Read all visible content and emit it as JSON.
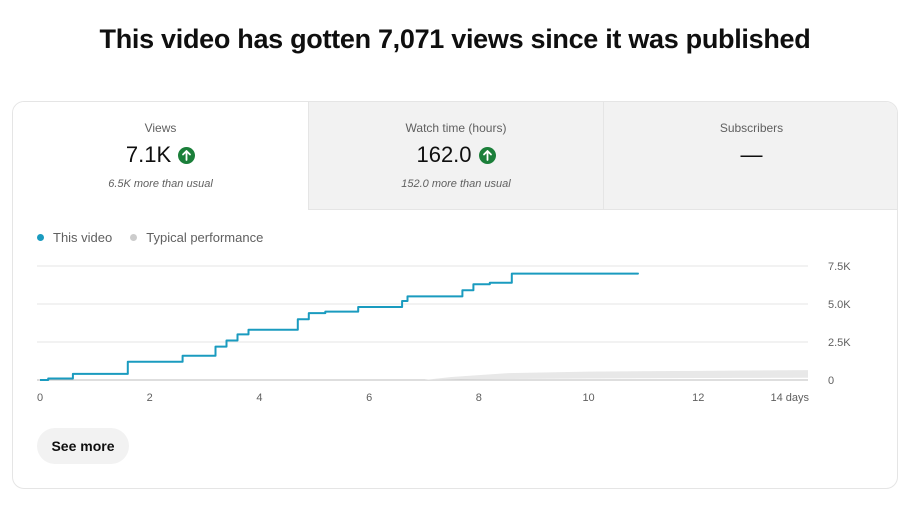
{
  "headline": "This video has gotten 7,071 views since it was published",
  "metrics": [
    {
      "label": "Views",
      "value": "7.1K",
      "sub": "6.5K more than usual",
      "trend": "up"
    },
    {
      "label": "Watch time (hours)",
      "value": "162.0",
      "sub": "152.0 more than usual",
      "trend": "up"
    },
    {
      "label": "Subscribers",
      "value": "—",
      "sub": "",
      "trend": "none"
    }
  ],
  "legend": {
    "this_video": "This video",
    "typical": "Typical performance"
  },
  "colors": {
    "this_video": "#1a9bbf",
    "typical": "#cccccc",
    "trend_up": "#1b7f3a"
  },
  "see_more": "See more",
  "chart_data": {
    "type": "line",
    "title": "",
    "xlabel": "",
    "ylabel": "",
    "x_ticks": [
      "0",
      "2",
      "4",
      "6",
      "8",
      "10",
      "12",
      "14 days"
    ],
    "y_ticks": [
      "0",
      "2.5K",
      "5.0K",
      "7.5K"
    ],
    "xlim": [
      0,
      14
    ],
    "ylim": [
      0,
      7500
    ],
    "series": [
      {
        "name": "This video",
        "style": "step-line",
        "points": [
          [
            0,
            0
          ],
          [
            0.15,
            100
          ],
          [
            0.6,
            400
          ],
          [
            1.6,
            1200
          ],
          [
            2.6,
            1600
          ],
          [
            3.2,
            2200
          ],
          [
            3.4,
            2600
          ],
          [
            3.6,
            3000
          ],
          [
            3.8,
            3300
          ],
          [
            4.7,
            4000
          ],
          [
            4.9,
            4400
          ],
          [
            5.2,
            4500
          ],
          [
            5.8,
            4800
          ],
          [
            6.6,
            5200
          ],
          [
            6.7,
            5500
          ],
          [
            7.7,
            5900
          ],
          [
            7.9,
            6300
          ],
          [
            8.2,
            6400
          ],
          [
            8.6,
            7000
          ],
          [
            10.9,
            7050
          ]
        ]
      },
      {
        "name": "Typical performance",
        "style": "band",
        "upper": [
          [
            0,
            0
          ],
          [
            7.0,
            0
          ],
          [
            7.5,
            200
          ],
          [
            8.5,
            450
          ],
          [
            10,
            550
          ],
          [
            12,
            600
          ],
          [
            14,
            650
          ]
        ],
        "lower": [
          [
            0,
            0
          ],
          [
            7.0,
            0
          ],
          [
            8.0,
            50
          ],
          [
            10,
            100
          ],
          [
            12,
            130
          ],
          [
            14,
            150
          ]
        ]
      }
    ]
  }
}
